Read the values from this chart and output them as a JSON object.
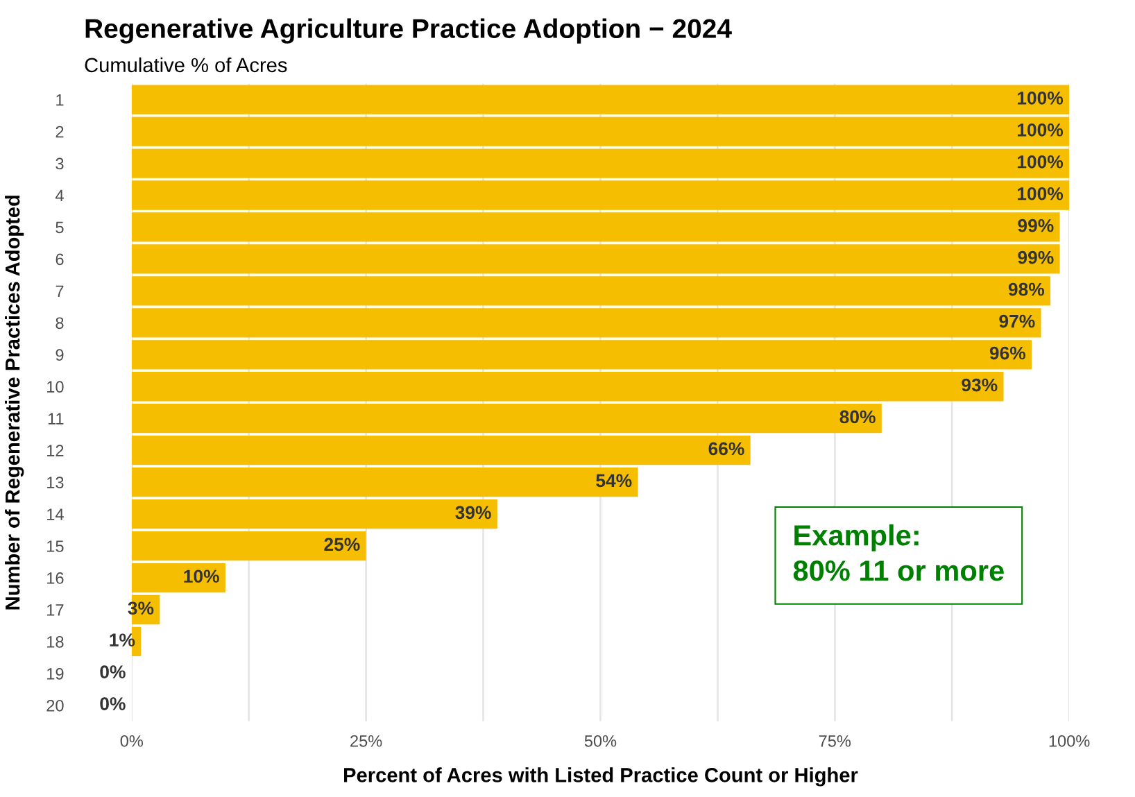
{
  "chart_data": {
    "type": "bar",
    "orientation": "horizontal",
    "title": "Regenerative Agriculture Practice Adoption − 2024",
    "subtitle": "Cumulative % of Acres",
    "xlabel": "Percent of Acres with Listed Practice Count or Higher",
    "ylabel": "Number of Regenerative Practices Adopted",
    "categories": [
      "1",
      "2",
      "3",
      "4",
      "5",
      "6",
      "7",
      "8",
      "9",
      "10",
      "11",
      "12",
      "13",
      "14",
      "15",
      "16",
      "17",
      "18",
      "19",
      "20"
    ],
    "values": [
      100,
      100,
      100,
      100,
      99,
      99,
      98,
      97,
      96,
      93,
      80,
      66,
      54,
      39,
      25,
      10,
      3,
      1,
      0,
      0
    ],
    "color": "#f5be00",
    "value_labels": [
      "100%",
      "100%",
      "100%",
      "100%",
      "99%",
      "99%",
      "98%",
      "97%",
      "96%",
      "93%",
      "80%",
      "66%",
      "54%",
      "39%",
      "25%",
      "10%",
      "3%",
      "1%",
      "0%",
      "0%"
    ],
    "xlim": [
      0,
      100
    ],
    "xticks": [
      {
        "value": 0,
        "label": "0%"
      },
      {
        "value": 12.5,
        "label": null
      },
      {
        "value": 25,
        "label": "25%"
      },
      {
        "value": 37.5,
        "label": null
      },
      {
        "value": 50,
        "label": "50%"
      },
      {
        "value": 62.5,
        "label": null
      },
      {
        "value": 75,
        "label": "75%"
      },
      {
        "value": 87.5,
        "label": null
      },
      {
        "value": 100,
        "label": "100%"
      }
    ],
    "grid": "x",
    "annotations": [
      "Example:\n80% 11 or more"
    ]
  }
}
